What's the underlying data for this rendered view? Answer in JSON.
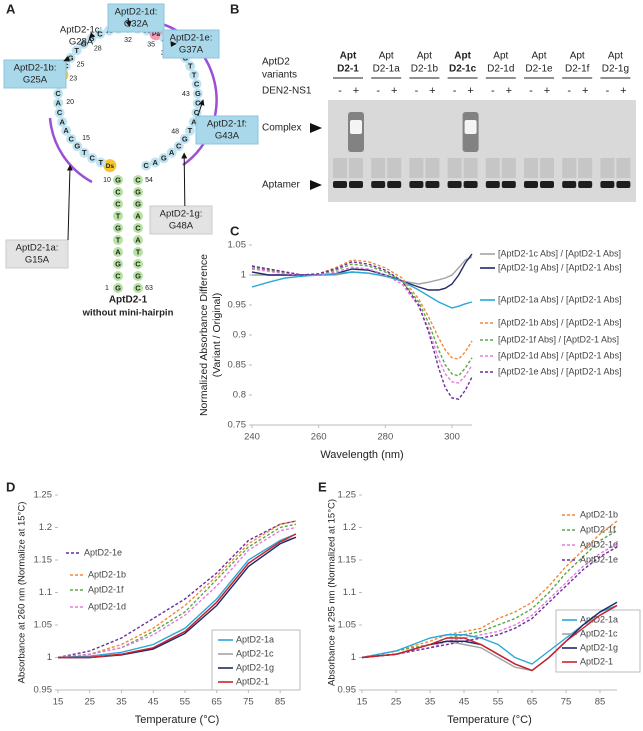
{
  "panel_labels": [
    "A",
    "B",
    "C",
    "D",
    "E"
  ],
  "diagram": {
    "sequence": [
      "G",
      "C",
      "G",
      "A",
      "T",
      "G",
      "T",
      "C",
      "C",
      "G",
      "Ds",
      "T",
      "C",
      "T",
      "G",
      "C",
      "A",
      "A",
      "C",
      "A",
      "C",
      "A",
      "Ds",
      "C",
      "G",
      "T",
      "G",
      "G",
      "C",
      "A",
      "G",
      "G",
      "G",
      "A",
      "Pa",
      "A",
      "G",
      "T",
      "C",
      "T",
      "T",
      "C",
      "G",
      "C",
      "C",
      "A",
      "T",
      "G",
      "C",
      "A",
      "G",
      "A",
      "C",
      "C",
      "G",
      "G",
      "A",
      "C",
      "A",
      "T",
      "C",
      "G",
      "C"
    ],
    "position_labels": [
      1,
      10,
      15,
      20,
      23,
      25,
      28,
      32,
      35,
      37,
      43,
      48,
      54,
      63
    ],
    "callouts": [
      {
        "name": "AptD2-1a:",
        "mutation": "G15A"
      },
      {
        "name": "AptD2-1b:",
        "mutation": "G25A"
      },
      {
        "name": "AptD2-1c:",
        "mutation": "G28A"
      },
      {
        "name": "AptD2-1d:",
        "mutation": "G32A"
      },
      {
        "name": "AptD2-1e:",
        "mutation": "G37A"
      },
      {
        "name": "AptD2-1f:",
        "mutation": "G43A"
      },
      {
        "name": "AptD2-1g:",
        "mutation": "G48A"
      }
    ],
    "title": "AptD2-1",
    "subtitle": "without mini-hairpin"
  },
  "gel": {
    "row_label": "AptD2",
    "row_label_2": "variants",
    "treatment_label": "DEN2-NS1",
    "treatments": [
      "-",
      "+"
    ],
    "lanes": [
      {
        "line1": "Apt",
        "line2": "D2-1",
        "bold": true,
        "complex_band": true
      },
      {
        "line1": "Apt",
        "line2": "D2-1a",
        "bold": false,
        "complex_band": false
      },
      {
        "line1": "Apt",
        "line2": "D2-1b",
        "bold": false,
        "complex_band": false
      },
      {
        "line1": "Apt",
        "line2": "D2-1c",
        "bold": true,
        "complex_band": true
      },
      {
        "line1": "Apt",
        "line2": "D2-1d",
        "bold": false,
        "complex_band": false
      },
      {
        "line1": "Apt",
        "line2": "D2-1e",
        "bold": false,
        "complex_band": false
      },
      {
        "line1": "Apt",
        "line2": "D2-1f",
        "bold": false,
        "complex_band": false
      },
      {
        "line1": "Apt",
        "line2": "D2-1g",
        "bold": false,
        "complex_band": false
      }
    ],
    "band_labels": [
      "Complex",
      "Aptamer"
    ]
  },
  "chart_data": [
    {
      "type": "line",
      "xlabel": "Wavelength (nm)",
      "ylabel": "Normalized Absorbance Difference",
      "ylabel_2": "(Variant / Original)",
      "x": [
        240,
        245,
        250,
        255,
        260,
        265,
        270,
        275,
        280,
        285,
        290,
        293,
        296,
        298,
        300,
        302,
        304,
        306
      ],
      "xlim": [
        240,
        306
      ],
      "xticks": [
        240,
        260,
        280,
        300
      ],
      "ylim": [
        0.75,
        1.05
      ],
      "yticks": [
        0.75,
        0.8,
        0.85,
        0.9,
        0.95,
        1,
        1.05
      ],
      "grid": false,
      "series": [
        {
          "name": "[AptD2-1c Abs] / [AptD2-1 Abs]",
          "color": "#a3a3a3",
          "dashed": false,
          "values": [
            1.0,
            1.0,
            1.0,
            1.0,
            1.0,
            1.0,
            1.005,
            1.003,
            0.998,
            0.99,
            0.985,
            0.988,
            0.992,
            0.995,
            1.0,
            1.012,
            1.025,
            1.03
          ]
        },
        {
          "name": "[AptD2-1g Abs] / [AptD2-1 Abs]",
          "color": "#1f2a6b",
          "dashed": false,
          "values": [
            1.005,
            1.0,
            1.0,
            1.0,
            1.0,
            1.002,
            1.01,
            1.008,
            1.0,
            0.99,
            0.98,
            0.975,
            0.975,
            0.978,
            0.985,
            1.0,
            1.02,
            1.035
          ]
        },
        {
          "name": "[AptD2-1a Abs] / [AptD2-1 Abs]",
          "color": "#2aa7d8",
          "dashed": false,
          "values": [
            0.98,
            0.988,
            0.995,
            0.998,
            1.0,
            1.002,
            1.005,
            1.003,
            0.998,
            0.99,
            0.975,
            0.965,
            0.955,
            0.95,
            0.945,
            0.948,
            0.952,
            0.955
          ]
        },
        {
          "name": "[AptD2-1b Abs] / [AptD2-1 Abs]",
          "color": "#f08a3c",
          "dashed": true,
          "values": [
            1.015,
            1.01,
            1.005,
            1.0,
            1.002,
            1.012,
            1.025,
            1.022,
            1.012,
            0.995,
            0.96,
            0.93,
            0.895,
            0.875,
            0.862,
            0.86,
            0.872,
            0.89
          ]
        },
        {
          "name": "[AptD2-1f Abs] / [AptD2-1 Abs]",
          "color": "#5aa846",
          "dashed": true,
          "values": [
            1.012,
            1.008,
            1.003,
            1.0,
            1.0,
            1.008,
            1.018,
            1.015,
            1.005,
            0.99,
            0.955,
            0.92,
            0.875,
            0.85,
            0.835,
            0.832,
            0.845,
            0.862
          ]
        },
        {
          "name": "[AptD2-1d Abs] / [AptD2-1 Abs]",
          "color": "#e87ae0",
          "dashed": true,
          "values": [
            1.01,
            1.006,
            1.002,
            1.0,
            1.0,
            1.005,
            1.013,
            1.01,
            1.0,
            0.985,
            0.948,
            0.91,
            0.86,
            0.835,
            0.822,
            0.82,
            0.832,
            0.85
          ]
        },
        {
          "name": "[AptD2-1e Abs] / [AptD2-1 Abs]",
          "color": "#6a2fa0",
          "dashed": true,
          "values": [
            1.015,
            1.01,
            1.005,
            1.0,
            1.002,
            1.01,
            1.022,
            1.018,
            1.008,
            0.99,
            0.95,
            0.905,
            0.845,
            0.812,
            0.795,
            0.793,
            0.808,
            0.83
          ]
        }
      ]
    },
    {
      "type": "line",
      "xlabel": "Temperature (°C)",
      "ylabel": "Absorbance at 260 nm (Normalize at 15°C)",
      "x": [
        15,
        25,
        35,
        45,
        55,
        65,
        75,
        85,
        90
      ],
      "xlim": [
        15,
        90
      ],
      "xticks": [
        15,
        25,
        35,
        45,
        55,
        65,
        75,
        85
      ],
      "ylim": [
        0.95,
        1.25
      ],
      "yticks": [
        0.95,
        1,
        1.05,
        1.1,
        1.15,
        1.2,
        1.25
      ],
      "grid": false,
      "series": [
        {
          "name": "AptD2-1e",
          "color": "#6a2fa0",
          "dashed": true,
          "values": [
            1.0,
            1.01,
            1.03,
            1.06,
            1.09,
            1.13,
            1.18,
            1.205,
            1.21
          ]
        },
        {
          "name": "AptD2-1b",
          "color": "#f08a3c",
          "dashed": true,
          "values": [
            1.0,
            1.005,
            1.02,
            1.045,
            1.08,
            1.125,
            1.175,
            1.205,
            1.21
          ]
        },
        {
          "name": "AptD2-1f",
          "color": "#5aa846",
          "dashed": true,
          "values": [
            1.0,
            1.005,
            1.015,
            1.04,
            1.07,
            1.12,
            1.17,
            1.2,
            1.205
          ]
        },
        {
          "name": "AptD2-1d",
          "color": "#e87ae0",
          "dashed": true,
          "values": [
            1.0,
            1.005,
            1.015,
            1.035,
            1.065,
            1.11,
            1.165,
            1.195,
            1.2
          ]
        },
        {
          "name": "AptD2-1a",
          "color": "#2aa7d8",
          "dashed": false,
          "values": [
            1.0,
            1.002,
            1.008,
            1.02,
            1.045,
            1.09,
            1.15,
            1.18,
            1.19
          ]
        },
        {
          "name": "AptD2-1c",
          "color": "#a3a3a3",
          "dashed": false,
          "values": [
            1.0,
            1.0,
            1.005,
            1.015,
            1.04,
            1.085,
            1.145,
            1.178,
            1.185
          ]
        },
        {
          "name": "AptD2-1g",
          "color": "#1f2a6b",
          "dashed": false,
          "values": [
            1.0,
            1.0,
            1.004,
            1.013,
            1.037,
            1.08,
            1.14,
            1.175,
            1.185
          ]
        },
        {
          "name": "AptD2-1",
          "color": "#d0202a",
          "dashed": false,
          "values": [
            1.0,
            1.0,
            1.005,
            1.015,
            1.04,
            1.085,
            1.145,
            1.178,
            1.19
          ]
        }
      ]
    },
    {
      "type": "line",
      "xlabel": "Temperature (°C)",
      "ylabel": "Absorbance at 295 nm (Normalized at 15°C)",
      "x": [
        15,
        25,
        35,
        40,
        45,
        50,
        55,
        60,
        65,
        70,
        75,
        80,
        85,
        90
      ],
      "xlim": [
        15,
        90
      ],
      "xticks": [
        15,
        25,
        35,
        45,
        55,
        65,
        75,
        85
      ],
      "ylim": [
        0.95,
        1.25
      ],
      "yticks": [
        0.95,
        1,
        1.05,
        1.1,
        1.15,
        1.2,
        1.25
      ],
      "grid": false,
      "series": [
        {
          "name": "AptD2-1b",
          "color": "#f08a3c",
          "dashed": true,
          "values": [
            1.0,
            1.01,
            1.025,
            1.035,
            1.04,
            1.045,
            1.06,
            1.07,
            1.085,
            1.11,
            1.14,
            1.165,
            1.19,
            1.21
          ]
        },
        {
          "name": "AptD2-1f",
          "color": "#5aa846",
          "dashed": true,
          "values": [
            1.0,
            1.01,
            1.02,
            1.03,
            1.035,
            1.04,
            1.05,
            1.06,
            1.075,
            1.1,
            1.13,
            1.155,
            1.18,
            1.195
          ]
        },
        {
          "name": "AptD2-1d",
          "color": "#e87ae0",
          "dashed": true,
          "values": [
            1.0,
            1.005,
            1.015,
            1.025,
            1.03,
            1.035,
            1.04,
            1.05,
            1.065,
            1.09,
            1.115,
            1.14,
            1.16,
            1.175
          ]
        },
        {
          "name": "AptD2-1e",
          "color": "#6a2fa0",
          "dashed": true,
          "values": [
            1.0,
            1.005,
            1.015,
            1.02,
            1.025,
            1.03,
            1.035,
            1.045,
            1.06,
            1.085,
            1.11,
            1.135,
            1.155,
            1.17
          ]
        },
        {
          "name": "AptD2-1a",
          "color": "#2aa7d8",
          "dashed": false,
          "values": [
            1.0,
            1.01,
            1.03,
            1.035,
            1.035,
            1.03,
            1.02,
            1.0,
            0.99,
            1.01,
            1.03,
            1.05,
            1.07,
            1.08
          ]
        },
        {
          "name": "AptD2-1c",
          "color": "#a3a3a3",
          "dashed": false,
          "values": [
            1.0,
            1.005,
            1.02,
            1.025,
            1.02,
            1.015,
            1.0,
            0.985,
            0.98,
            1.0,
            1.025,
            1.05,
            1.065,
            1.08
          ]
        },
        {
          "name": "AptD2-1g",
          "color": "#1f2a6b",
          "dashed": false,
          "values": [
            1.0,
            1.005,
            1.02,
            1.025,
            1.025,
            1.02,
            1.005,
            0.99,
            0.98,
            1.0,
            1.025,
            1.05,
            1.07,
            1.085
          ]
        },
        {
          "name": "AptD2-1",
          "color": "#d0202a",
          "dashed": false,
          "values": [
            1.0,
            1.005,
            1.02,
            1.03,
            1.03,
            1.02,
            1.005,
            0.99,
            0.98,
            1.0,
            1.025,
            1.045,
            1.065,
            1.08
          ]
        }
      ]
    }
  ]
}
